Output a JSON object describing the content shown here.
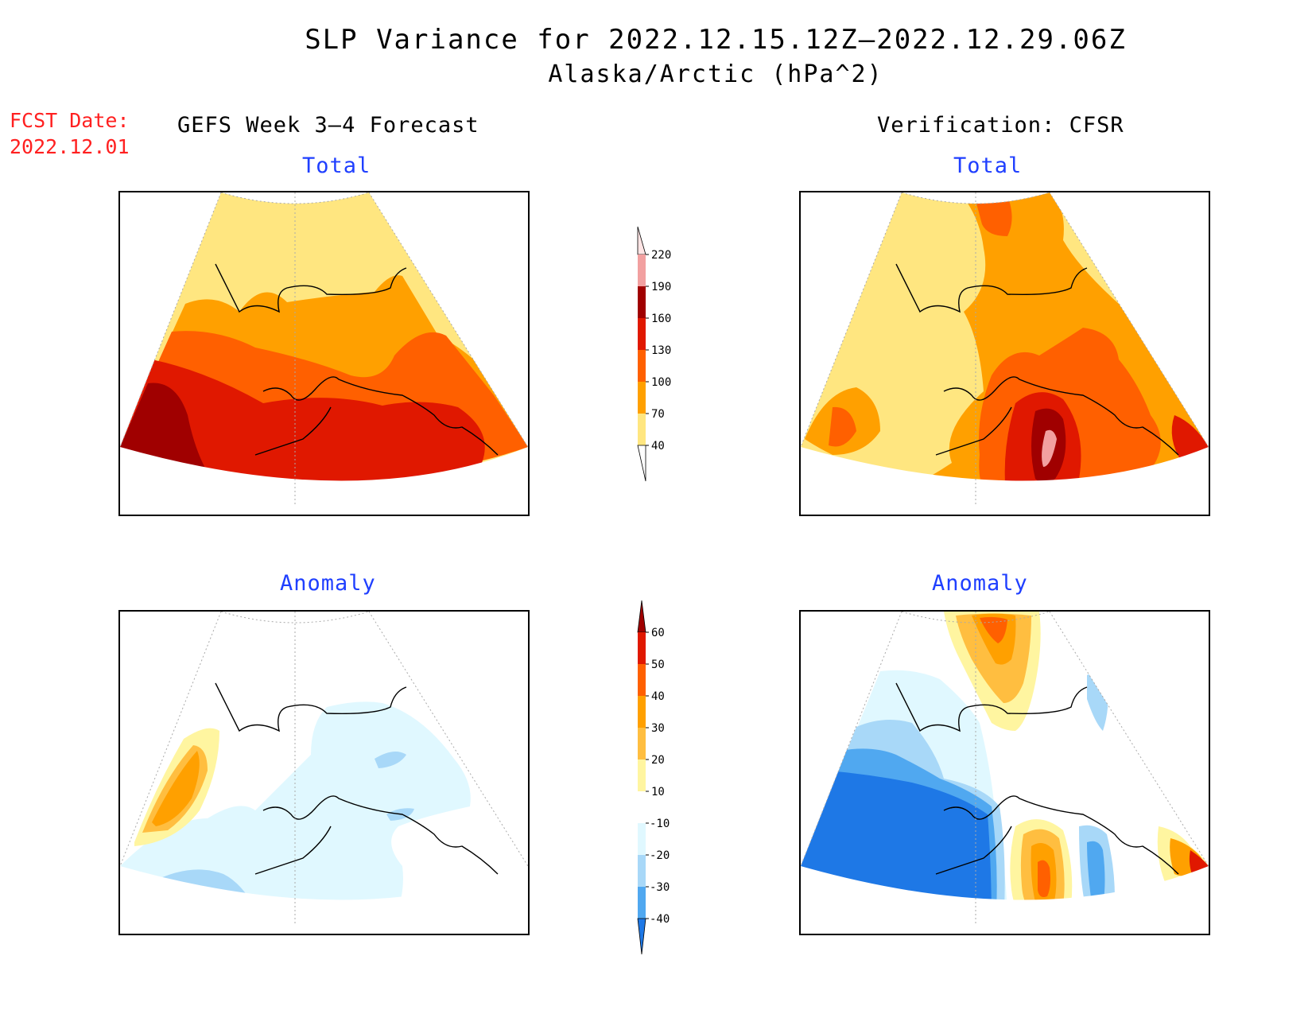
{
  "title": {
    "line1": "SLP Variance for 2022.12.15.12Z–2022.12.29.06Z",
    "line2": "Alaska/Arctic (hPa^2)"
  },
  "forecast_date": {
    "label": "FCST Date:",
    "value": "2022.12.01"
  },
  "columns": {
    "left_header": "GEFS Week 3–4 Forecast",
    "right_header": "Verification: CFSR"
  },
  "panels": {
    "total_label": "Total",
    "anomaly_label": "Anomaly"
  },
  "colorbars": {
    "total": {
      "ticks": [
        "220",
        "190",
        "160",
        "130",
        "100",
        "70",
        "40"
      ],
      "colors": [
        "#ffe5e5",
        "#f2a0a0",
        "#a00000",
        "#e01800",
        "#ff6000",
        "#ffa000",
        "#ffe680"
      ]
    },
    "anomaly": {
      "ticks": [
        "60",
        "50",
        "40",
        "30",
        "20",
        "10",
        "-10",
        "-20",
        "-30",
        "-40"
      ],
      "colors": [
        "#a00000",
        "#e01800",
        "#ff6000",
        "#ffa000",
        "#ffbe40",
        "#fff5a0",
        "#ffffff",
        "#e0f8ff",
        "#a8d8f8",
        "#50a8f0",
        "#1e78e6"
      ]
    }
  }
}
